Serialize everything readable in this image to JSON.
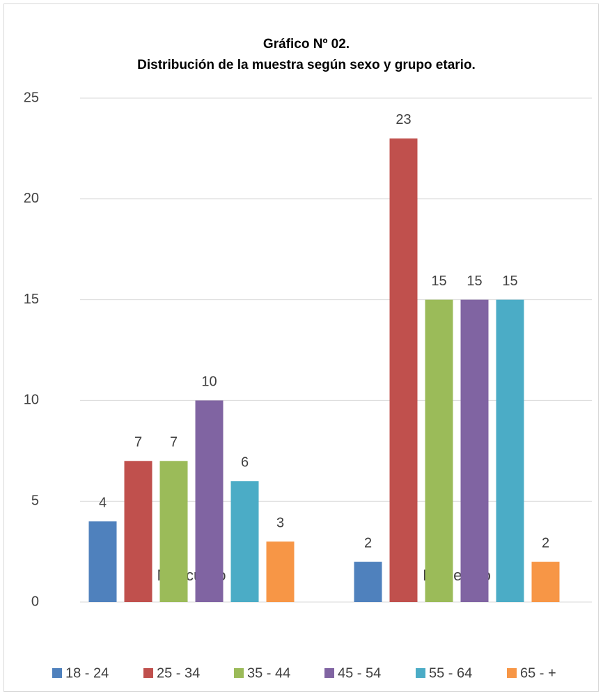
{
  "chart_data": {
    "type": "bar",
    "title": [
      "Gráfico Nº 02.",
      "Distribución de la muestra según sexo y grupo etario."
    ],
    "categories": [
      "Masculino",
      "Femenino"
    ],
    "series": [
      {
        "name": "18 - 24",
        "color": "#4f81bd",
        "values": [
          4,
          2
        ]
      },
      {
        "name": "25 - 34",
        "color": "#c0504d",
        "values": [
          7,
          23
        ]
      },
      {
        "name": "35 - 44",
        "color": "#9bbb59",
        "values": [
          7,
          15
        ]
      },
      {
        "name": "45 - 54",
        "color": "#8064a2",
        "values": [
          10,
          15
        ]
      },
      {
        "name": "55 - 64",
        "color": "#4bacc6",
        "values": [
          6,
          15
        ]
      },
      {
        "name": "65 - +",
        "color": "#f79646",
        "values": [
          3,
          2
        ]
      }
    ],
    "ylim": [
      0,
      25
    ],
    "yticks": [
      0,
      5,
      10,
      15,
      20,
      25
    ],
    "grid": true,
    "legend": "bottom"
  }
}
